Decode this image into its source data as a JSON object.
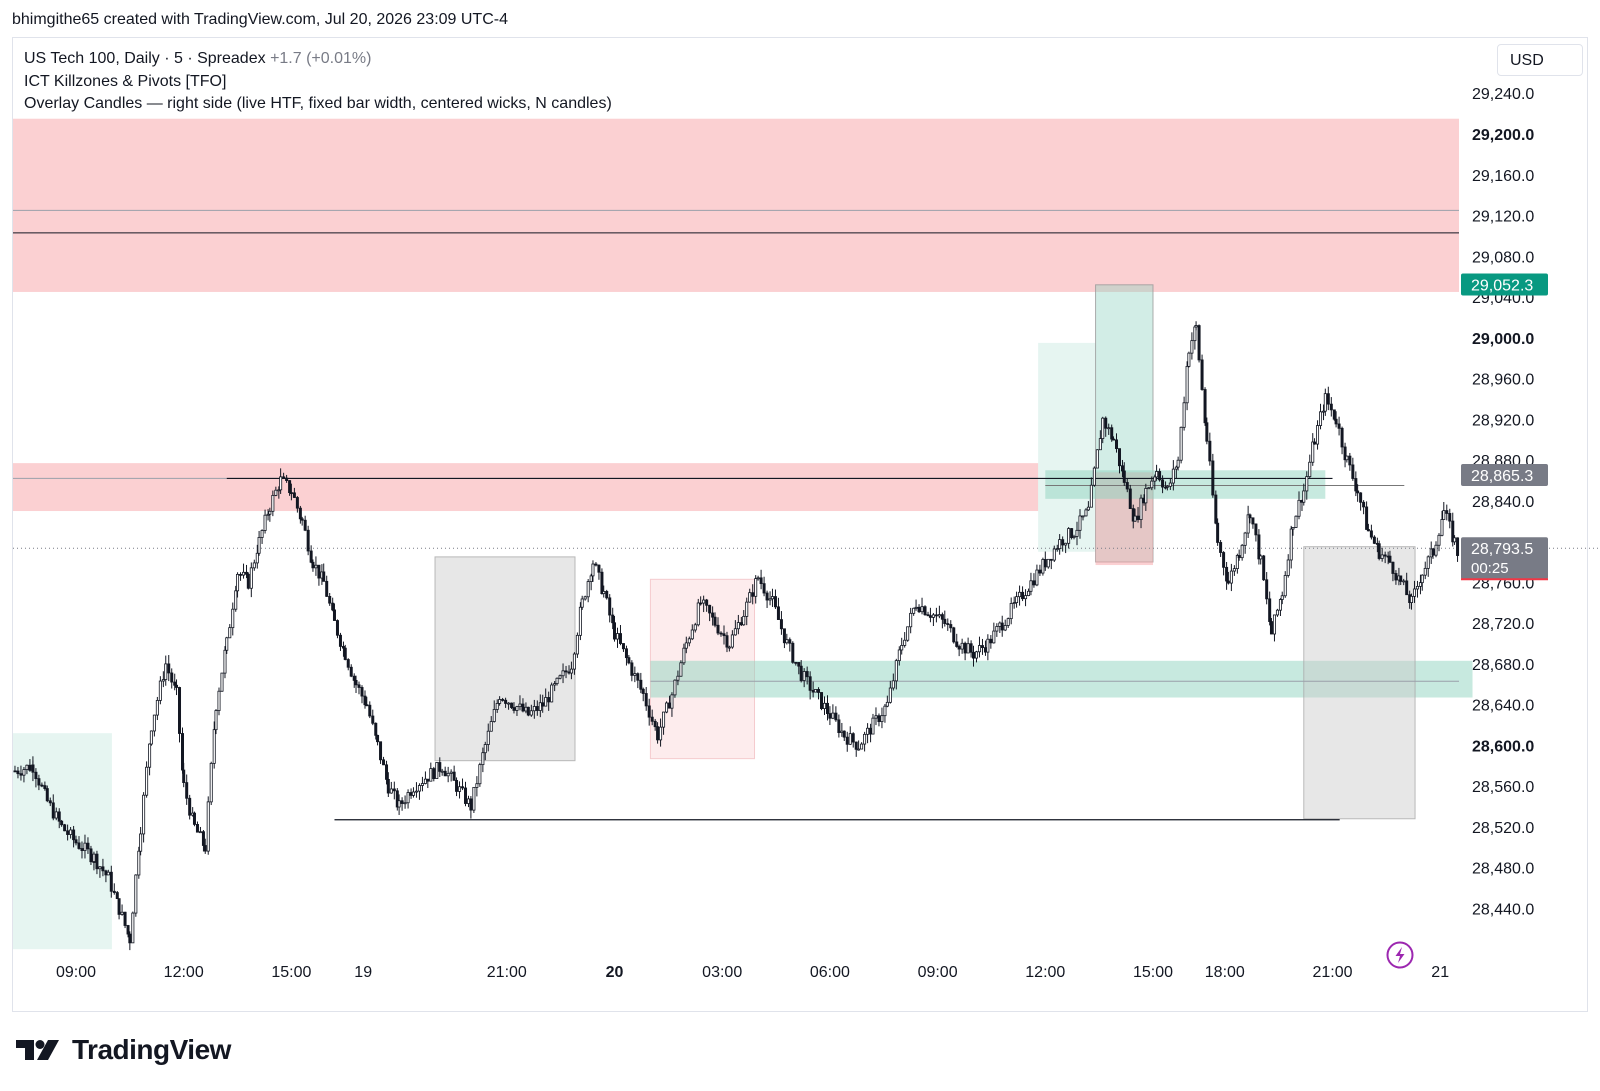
{
  "header": {
    "credit": "bhimgithe65 created with TradingView.com, Jul 20, 2026 23:09 UTC-4"
  },
  "legend": {
    "symbol": "US Tech 100, Daily · 5 · Spreadex",
    "change": "+1.7 (+0.01%)",
    "indicator1": "ICT Killzones & Pivots [TFO]",
    "indicator2": "Overlay Candles — right side (live HTF, fixed bar width, centered wicks, N candles)"
  },
  "currency": "USD",
  "brand": {
    "name": "TradingView",
    "logo_icon": "tradingview-logo-icon"
  },
  "colors": {
    "zone_red": "#f7a1a6",
    "zone_green": "#8fd3c0",
    "box_grey": "#c9c9c9",
    "candle": "#131722",
    "badge_green": "#089981",
    "badge_grey": "#787b86",
    "badge_last": "#787b86",
    "bolt": "#9c27b0"
  },
  "chart_data": {
    "type": "candlestick",
    "symbol": "US Tech 100",
    "interval": "5",
    "ylim": [
      28400,
      29260
    ],
    "y_ticks": [
      {
        "value": 28440,
        "label": "28,440.0",
        "bold": false
      },
      {
        "value": 28480,
        "label": "28,480.0",
        "bold": false
      },
      {
        "value": 28520,
        "label": "28,520.0",
        "bold": false
      },
      {
        "value": 28560,
        "label": "28,560.0",
        "bold": false
      },
      {
        "value": 28600,
        "label": "28,600.0",
        "bold": true
      },
      {
        "value": 28640,
        "label": "28,640.0",
        "bold": false
      },
      {
        "value": 28680,
        "label": "28,680.0",
        "bold": false
      },
      {
        "value": 28720,
        "label": "28,720.0",
        "bold": false
      },
      {
        "value": 28760,
        "label": "28,760.0",
        "bold": false
      },
      {
        "value": 28840,
        "label": "28,840.0",
        "bold": false
      },
      {
        "value": 28880,
        "label": "28,880.0",
        "bold": false
      },
      {
        "value": 28920,
        "label": "28,920.0",
        "bold": false
      },
      {
        "value": 28960,
        "label": "28,960.0",
        "bold": false
      },
      {
        "value": 29000,
        "label": "29,000.0",
        "bold": true
      },
      {
        "value": 29040,
        "label": "29,040.0",
        "bold": false
      },
      {
        "value": 29080,
        "label": "29,080.0",
        "bold": false
      },
      {
        "value": 29120,
        "label": "29,120.0",
        "bold": false
      },
      {
        "value": 29160,
        "label": "29,160.0",
        "bold": false
      },
      {
        "value": 29200,
        "label": "29,200.0",
        "bold": true
      },
      {
        "value": 29240,
        "label": "29,240.0",
        "bold": false
      }
    ],
    "x_ticks": [
      {
        "hour": 9,
        "label": "09:00",
        "bold": false
      },
      {
        "hour": 12,
        "label": "12:00",
        "bold": false
      },
      {
        "hour": 15,
        "label": "15:00",
        "bold": false
      },
      {
        "hour": 17,
        "label": "19",
        "bold": false
      },
      {
        "hour": 21,
        "label": "21:00",
        "bold": false
      },
      {
        "hour": 24,
        "label": "20",
        "bold": true
      },
      {
        "hour": 27,
        "label": "03:00",
        "bold": false
      },
      {
        "hour": 30,
        "label": "06:00",
        "bold": false
      },
      {
        "hour": 33,
        "label": "09:00",
        "bold": false
      },
      {
        "hour": 36,
        "label": "12:00",
        "bold": false
      },
      {
        "hour": 39,
        "label": "15:00",
        "bold": false
      },
      {
        "hour": 41,
        "label": "18:00",
        "bold": false
      },
      {
        "hour": 44,
        "label": "21:00",
        "bold": false
      },
      {
        "hour": 47,
        "label": "21",
        "bold": false
      }
    ],
    "price_badges": [
      {
        "value": 29052.3,
        "label": "29,052.3",
        "color": "#089981"
      },
      {
        "value": 28865.3,
        "label": "28,865.3",
        "color": "#787b86"
      }
    ],
    "last_price": {
      "value": 28793.5,
      "label": "28,793.5",
      "countdown": "00:25"
    },
    "path": [
      [
        7.3,
        28575
      ],
      [
        7.8,
        28580
      ],
      [
        8.2,
        28545
      ],
      [
        8.6,
        28520
      ],
      [
        9.0,
        28505
      ],
      [
        9.5,
        28490
      ],
      [
        9.9,
        28470
      ],
      [
        10.2,
        28440
      ],
      [
        10.5,
        28410
      ],
      [
        10.8,
        28520
      ],
      [
        11.1,
        28620
      ],
      [
        11.5,
        28680
      ],
      [
        11.8,
        28650
      ],
      [
        12.0,
        28560
      ],
      [
        12.3,
        28520
      ],
      [
        12.6,
        28500
      ],
      [
        12.9,
        28640
      ],
      [
        13.2,
        28700
      ],
      [
        13.5,
        28770
      ],
      [
        13.8,
        28760
      ],
      [
        14.1,
        28800
      ],
      [
        14.4,
        28835
      ],
      [
        14.7,
        28860
      ],
      [
        15.0,
        28850
      ],
      [
        15.3,
        28820
      ],
      [
        15.6,
        28780
      ],
      [
        15.9,
        28760
      ],
      [
        16.2,
        28720
      ],
      [
        16.5,
        28690
      ],
      [
        16.8,
        28660
      ],
      [
        17.1,
        28640
      ],
      [
        17.4,
        28600
      ],
      [
        17.7,
        28560
      ],
      [
        18.0,
        28540
      ],
      [
        18.4,
        28560
      ],
      [
        18.8,
        28570
      ],
      [
        19.2,
        28580
      ],
      [
        19.6,
        28560
      ],
      [
        20.0,
        28540
      ],
      [
        20.4,
        28600
      ],
      [
        20.8,
        28650
      ],
      [
        21.2,
        28640
      ],
      [
        21.6,
        28630
      ],
      [
        22.0,
        28640
      ],
      [
        22.4,
        28660
      ],
      [
        22.8,
        28680
      ],
      [
        23.1,
        28740
      ],
      [
        23.4,
        28780
      ],
      [
        23.7,
        28750
      ],
      [
        24.0,
        28710
      ],
      [
        24.4,
        28680
      ],
      [
        24.8,
        28650
      ],
      [
        25.2,
        28610
      ],
      [
        25.6,
        28650
      ],
      [
        26.0,
        28700
      ],
      [
        26.4,
        28740
      ],
      [
        26.8,
        28720
      ],
      [
        27.2,
        28700
      ],
      [
        27.6,
        28730
      ],
      [
        28.0,
        28765
      ],
      [
        28.4,
        28740
      ],
      [
        28.8,
        28700
      ],
      [
        29.2,
        28670
      ],
      [
        29.6,
        28650
      ],
      [
        30.0,
        28630
      ],
      [
        30.4,
        28610
      ],
      [
        30.8,
        28600
      ],
      [
        31.2,
        28620
      ],
      [
        31.6,
        28640
      ],
      [
        32.0,
        28700
      ],
      [
        32.4,
        28740
      ],
      [
        32.8,
        28730
      ],
      [
        33.2,
        28720
      ],
      [
        33.6,
        28700
      ],
      [
        34.0,
        28690
      ],
      [
        34.4,
        28700
      ],
      [
        34.8,
        28720
      ],
      [
        35.2,
        28740
      ],
      [
        35.6,
        28760
      ],
      [
        36.0,
        28780
      ],
      [
        36.4,
        28800
      ],
      [
        36.8,
        28810
      ],
      [
        37.2,
        28830
      ],
      [
        37.6,
        28920
      ],
      [
        37.9,
        28900
      ],
      [
        38.2,
        28860
      ],
      [
        38.5,
        28820
      ],
      [
        38.8,
        28850
      ],
      [
        39.1,
        28870
      ],
      [
        39.4,
        28850
      ],
      [
        39.7,
        28880
      ],
      [
        40.0,
        28990
      ],
      [
        40.2,
        29010
      ],
      [
        40.5,
        28900
      ],
      [
        40.8,
        28800
      ],
      [
        41.1,
        28760
      ],
      [
        41.4,
        28790
      ],
      [
        41.7,
        28830
      ],
      [
        42.0,
        28780
      ],
      [
        42.3,
        28710
      ],
      [
        42.6,
        28750
      ],
      [
        42.9,
        28820
      ],
      [
        43.2,
        28850
      ],
      [
        43.5,
        28900
      ],
      [
        43.8,
        28940
      ],
      [
        44.1,
        28920
      ],
      [
        44.4,
        28880
      ],
      [
        44.7,
        28850
      ],
      [
        45.0,
        28810
      ],
      [
        45.3,
        28790
      ],
      [
        45.6,
        28780
      ],
      [
        45.9,
        28760
      ],
      [
        46.2,
        28740
      ],
      [
        46.5,
        28770
      ],
      [
        46.8,
        28790
      ],
      [
        47.1,
        28830
      ],
      [
        47.4,
        28800
      ],
      [
        47.7,
        28760
      ],
      [
        48.0,
        28730
      ],
      [
        48.3,
        28690
      ],
      [
        48.6,
        28670
      ],
      [
        48.9,
        28650
      ],
      [
        49.2,
        28630
      ],
      [
        49.5,
        28610
      ],
      [
        49.8,
        28590
      ],
      [
        50.1,
        28580
      ],
      [
        50.4,
        28600
      ],
      [
        50.7,
        28590
      ],
      [
        51.0,
        28560
      ],
      [
        51.3,
        28530
      ],
      [
        51.6,
        28540
      ],
      [
        51.9,
        28530
      ],
      [
        52.2,
        28560
      ],
      [
        52.5,
        28600
      ],
      [
        52.8,
        28640
      ],
      [
        53.1,
        28620
      ],
      [
        53.4,
        28580
      ],
      [
        53.7,
        28530
      ],
      [
        54.0,
        28600
      ],
      [
        54.3,
        28660
      ],
      [
        54.6,
        28700
      ],
      [
        54.9,
        28720
      ],
      [
        55.2,
        28710
      ],
      [
        55.5,
        28700
      ],
      [
        55.8,
        28720
      ],
      [
        56.1,
        28710
      ],
      [
        56.4,
        28690
      ],
      [
        56.7,
        28720
      ],
      [
        57.0,
        28740
      ],
      [
        57.3,
        28760
      ],
      [
        57.6,
        28780
      ],
      [
        57.9,
        28793.5
      ]
    ]
  }
}
